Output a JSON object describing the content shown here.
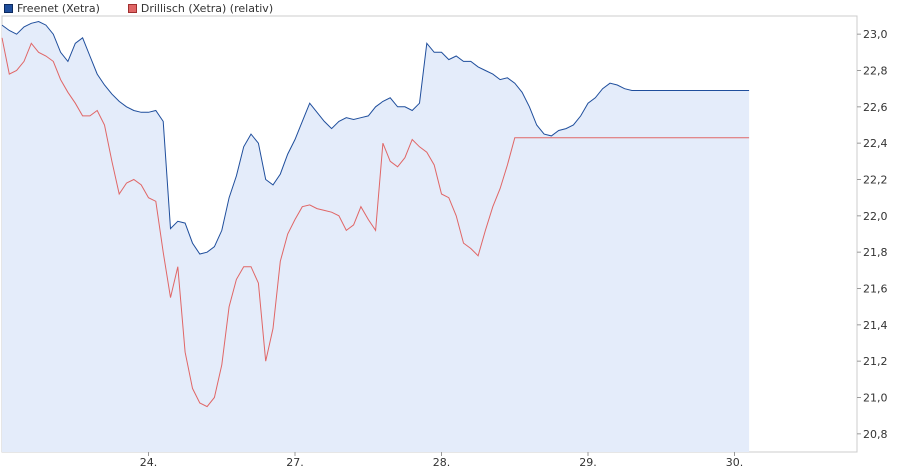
{
  "legend": {
    "freenet": "Freenet (Xetra)",
    "drillisch": "Drillisch (Xetra) (relativ)"
  },
  "colors": {
    "freenet": "#1f4e9c",
    "drillisch": "#e06666",
    "area": "#e4ecfa",
    "grid": "#dddddd",
    "frame": "#cccccc"
  },
  "chart_data": {
    "type": "line",
    "x": [
      0,
      0.05,
      0.1,
      0.15,
      0.2,
      0.25,
      0.3,
      0.35,
      0.4,
      0.45,
      0.5,
      0.55,
      0.6,
      0.65,
      0.7,
      0.75,
      0.8,
      0.85,
      0.9,
      0.95,
      1,
      1.05,
      1.1,
      1.15,
      1.2,
      1.25,
      1.3,
      1.35,
      1.4,
      1.45,
      1.5,
      1.55,
      1.6,
      1.65,
      1.7,
      1.75,
      1.8,
      1.85,
      1.9,
      1.95,
      2,
      2.05,
      2.1,
      2.15,
      2.2,
      2.25,
      2.3,
      2.35,
      2.4,
      2.45,
      2.5,
      2.55,
      2.6,
      2.65,
      2.7,
      2.75,
      2.8,
      2.85,
      2.9,
      2.95,
      3,
      3.05,
      3.1,
      3.15,
      3.2,
      3.25,
      3.3,
      3.35,
      3.4,
      3.45,
      3.5,
      3.55,
      3.6,
      3.65,
      3.7,
      3.75,
      3.8,
      3.85,
      3.9,
      3.95,
      4,
      4.05,
      4.1,
      4.15,
      4.2,
      4.25,
      4.3,
      4.35,
      4.4,
      4.45,
      4.5,
      4.55,
      4.6,
      4.65,
      4.7,
      4.75,
      4.8,
      4.85,
      4.9,
      4.95,
      5,
      5.05,
      5.1,
      5.15,
      5.2,
      5.25,
      5.3
    ],
    "series": [
      {
        "name": "Freenet (Xetra)",
        "values": [
          23.05,
          23.02,
          23.0,
          23.04,
          23.06,
          23.07,
          23.05,
          23.0,
          22.9,
          22.85,
          22.95,
          22.98,
          22.88,
          22.78,
          22.72,
          22.67,
          22.63,
          22.6,
          22.58,
          22.57,
          22.57,
          22.58,
          22.52,
          21.93,
          21.97,
          21.96,
          21.85,
          21.79,
          21.8,
          21.83,
          21.92,
          22.1,
          22.22,
          22.38,
          22.45,
          22.4,
          22.2,
          22.17,
          22.23,
          22.34,
          22.42,
          22.52,
          22.62,
          22.57,
          22.52,
          22.48,
          22.52,
          22.54,
          22.53,
          22.54,
          22.55,
          22.6,
          22.63,
          22.65,
          22.6,
          22.6,
          22.58,
          22.62,
          22.95,
          22.9,
          22.9,
          22.86,
          22.88,
          22.85,
          22.85,
          22.82,
          22.8,
          22.78,
          22.75,
          22.76,
          22.73,
          22.68,
          22.6,
          22.5,
          22.45,
          22.44,
          22.47,
          22.48,
          22.5,
          22.55,
          22.62,
          22.65,
          22.7,
          22.73,
          22.72,
          22.7,
          22.69,
          22.69,
          22.69,
          22.69,
          22.69,
          22.69,
          22.69,
          22.69,
          22.69,
          22.69,
          22.69,
          22.69,
          22.69,
          22.69,
          22.69,
          22.69,
          22.69,
          22.69,
          22.69,
          22.69,
          22.69
        ]
      },
      {
        "name": "Drillisch (Xetra) (relativ)",
        "values": [
          22.98,
          22.78,
          22.8,
          22.85,
          22.95,
          22.9,
          22.88,
          22.85,
          22.75,
          22.68,
          22.62,
          22.55,
          22.55,
          22.58,
          22.5,
          22.3,
          22.12,
          22.18,
          22.2,
          22.17,
          22.1,
          22.08,
          21.8,
          21.55,
          21.72,
          21.25,
          21.05,
          20.97,
          20.95,
          21.0,
          21.18,
          21.5,
          21.65,
          21.72,
          21.72,
          21.63,
          21.2,
          21.38,
          21.75,
          21.9,
          21.98,
          22.05,
          22.06,
          22.04,
          22.03,
          22.02,
          22.0,
          21.92,
          21.95,
          22.05,
          21.98,
          21.92,
          22.4,
          22.3,
          22.27,
          22.32,
          22.42,
          22.38,
          22.35,
          22.28,
          22.12,
          22.1,
          22.0,
          21.85,
          21.82,
          21.78,
          21.92,
          22.05,
          22.15,
          22.28,
          22.43,
          22.43,
          22.43,
          22.43,
          22.43,
          22.43,
          22.43,
          22.43,
          22.43,
          22.43,
          22.43,
          22.43,
          22.43,
          22.43,
          22.43,
          22.43,
          22.43,
          22.43,
          22.43,
          22.43,
          22.43,
          22.43,
          22.43,
          22.43,
          22.43,
          22.43,
          22.43,
          22.43,
          22.43,
          22.43,
          22.43,
          22.43,
          22.43,
          22.43,
          22.43,
          22.43,
          22.43
        ]
      }
    ],
    "xlim": [
      0,
      5.3
    ],
    "ylim": [
      20.7,
      23.1
    ],
    "x_ticks": [
      {
        "value": 1.0,
        "label": "24."
      },
      {
        "value": 2.0,
        "label": "27."
      },
      {
        "value": 3.0,
        "label": "28."
      },
      {
        "value": 4.0,
        "label": "29."
      },
      {
        "value": 5.0,
        "label": "30."
      }
    ],
    "y_ticks": [
      {
        "value": 23.0,
        "label": "23,0"
      },
      {
        "value": 22.8,
        "label": "22,8"
      },
      {
        "value": 22.6,
        "label": "22,6"
      },
      {
        "value": 22.4,
        "label": "22,4"
      },
      {
        "value": 22.2,
        "label": "22,2"
      },
      {
        "value": 22.0,
        "label": "22,0"
      },
      {
        "value": 21.8,
        "label": "21,8"
      },
      {
        "value": 21.6,
        "label": "21,6"
      },
      {
        "value": 21.4,
        "label": "21,4"
      },
      {
        "value": 21.2,
        "label": "21,2"
      },
      {
        "value": 21.0,
        "label": "21,0"
      },
      {
        "value": 20.8,
        "label": "20,8"
      }
    ],
    "area_fill_series": "Freenet (Xetra)",
    "grid": false,
    "legend_position": "top-left"
  }
}
